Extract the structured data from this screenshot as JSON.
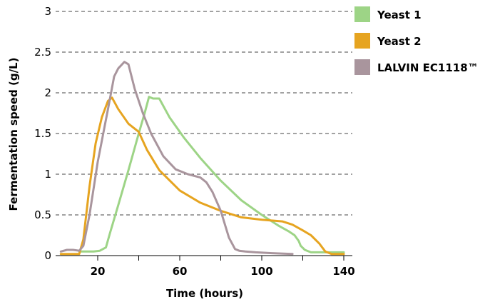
{
  "chart_data": {
    "type": "line",
    "title": "",
    "xlabel": "Time (hours)",
    "ylabel": "Fermentation speed (g/L)",
    "xlim": [
      0,
      140
    ],
    "ylim": [
      0,
      3
    ],
    "x_ticks": [
      {
        "value": 20,
        "label": "20"
      },
      {
        "value": 60,
        "label": "60"
      },
      {
        "value": 100,
        "label": "100"
      },
      {
        "value": 140,
        "label": "140"
      }
    ],
    "x_minor_ticks": [
      40,
      80,
      120
    ],
    "y_ticks": [
      {
        "value": 0,
        "label": "0"
      },
      {
        "value": 0.5,
        "label": "0.5"
      },
      {
        "value": 1,
        "label": "1"
      },
      {
        "value": 1.5,
        "label": "1.5"
      },
      {
        "value": 2,
        "label": "2"
      },
      {
        "value": 2.5,
        "label": "2.5"
      },
      {
        "value": 3,
        "label": "3"
      }
    ],
    "grid": "horizontal dashed",
    "legend_position": "top-right",
    "series": [
      {
        "name": "Yeast 1",
        "color": "#9dd486",
        "x": [
          11,
          15,
          18,
          21,
          24,
          26,
          30,
          35,
          40,
          43,
          45,
          47,
          50,
          55,
          62,
          70,
          80,
          90,
          100,
          108,
          113,
          116,
          118,
          119,
          121,
          124,
          128,
          135,
          140
        ],
        "y": [
          0.05,
          0.05,
          0.05,
          0.06,
          0.1,
          0.28,
          0.62,
          1.05,
          1.5,
          1.76,
          1.95,
          1.93,
          1.93,
          1.7,
          1.45,
          1.2,
          0.92,
          0.68,
          0.5,
          0.37,
          0.3,
          0.25,
          0.18,
          0.12,
          0.07,
          0.04,
          0.04,
          0.04,
          0.04
        ]
      },
      {
        "name": "Yeast 2",
        "color": "#e6a420",
        "x": [
          2,
          11,
          13,
          16,
          19,
          22,
          25,
          27,
          30,
          35,
          40,
          44,
          50,
          60,
          70,
          80,
          90,
          100,
          110,
          115,
          120,
          124,
          128,
          131,
          134,
          140
        ],
        "y": [
          0.02,
          0.02,
          0.2,
          0.85,
          1.38,
          1.7,
          1.9,
          1.94,
          1.8,
          1.62,
          1.52,
          1.3,
          1.05,
          0.8,
          0.65,
          0.55,
          0.47,
          0.44,
          0.42,
          0.38,
          0.31,
          0.25,
          0.15,
          0.05,
          0.02,
          0.02
        ]
      },
      {
        "name": "LALVIN EC1118™",
        "color": "#a9959d",
        "x": [
          2,
          5,
          8,
          11,
          13,
          16,
          20,
          25,
          28,
          30,
          33,
          35,
          38,
          42,
          46,
          52,
          58,
          64,
          70,
          73,
          76,
          80,
          84,
          87,
          89,
          92,
          97,
          105,
          115
        ],
        "y": [
          0.05,
          0.07,
          0.07,
          0.06,
          0.12,
          0.5,
          1.15,
          1.8,
          2.2,
          2.3,
          2.38,
          2.35,
          2.05,
          1.75,
          1.5,
          1.22,
          1.06,
          1.0,
          0.96,
          0.9,
          0.78,
          0.55,
          0.22,
          0.08,
          0.06,
          0.05,
          0.04,
          0.03,
          0.02
        ]
      }
    ]
  }
}
